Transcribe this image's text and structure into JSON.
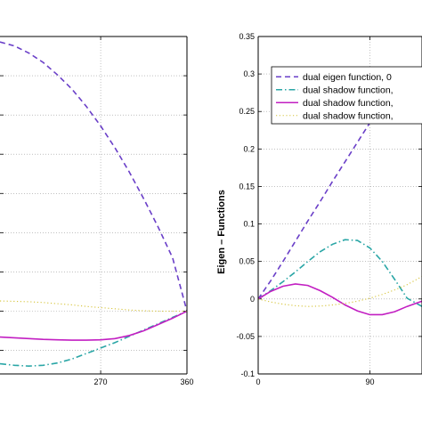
{
  "chart_data": [
    {
      "type": "line",
      "title": "",
      "xlabel": "",
      "ylabel": "",
      "xlim": [
        165,
        360
      ],
      "ylim": [
        -0.08,
        0.35
      ],
      "xticks": [
        270,
        360
      ],
      "xtick_labels": [
        "270",
        "360"
      ],
      "grid": true,
      "legend": "none",
      "series": [
        {
          "color": "#6a3fc8",
          "style": "dashed",
          "x": [
            165,
            180,
            195,
            210,
            225,
            240,
            255,
            270,
            285,
            300,
            315,
            330,
            345,
            360
          ],
          "y": [
            0.343,
            0.338,
            0.329,
            0.317,
            0.301,
            0.283,
            0.261,
            0.236,
            0.208,
            0.177,
            0.143,
            0.107,
            0.068,
            0.0
          ]
        },
        {
          "color": "#2aa6a6",
          "style": "dashdot",
          "x": [
            165,
            180,
            195,
            210,
            225,
            240,
            255,
            270,
            285,
            300,
            315,
            330,
            345,
            360
          ],
          "y": [
            -0.067,
            -0.069,
            -0.07,
            -0.069,
            -0.066,
            -0.061,
            -0.054,
            -0.047,
            -0.04,
            -0.032,
            -0.024,
            -0.016,
            -0.008,
            0.0
          ]
        },
        {
          "color": "#c21fc2",
          "style": "solid",
          "x": [
            165,
            180,
            195,
            210,
            225,
            240,
            255,
            270,
            285,
            300,
            315,
            330,
            345,
            360
          ],
          "y": [
            -0.033,
            -0.034,
            -0.035,
            -0.036,
            -0.0365,
            -0.037,
            -0.037,
            -0.0365,
            -0.035,
            -0.031,
            -0.025,
            -0.017,
            -0.009,
            0.0
          ]
        },
        {
          "color": "#d6c43a",
          "style": "dotted",
          "x": [
            165,
            180,
            195,
            210,
            225,
            240,
            255,
            270,
            285,
            300,
            315,
            330,
            345,
            360
          ],
          "y": [
            0.013,
            0.0125,
            0.012,
            0.011,
            0.0095,
            0.008,
            0.006,
            0.0045,
            0.003,
            0.0015,
            0.0005,
            0.0,
            0.0,
            0.0
          ]
        }
      ]
    },
    {
      "type": "line",
      "title": "",
      "xlabel": "",
      "ylabel": "Eigen – Functions",
      "xlim": [
        0,
        132
      ],
      "ylim": [
        -0.1,
        0.35
      ],
      "xticks": [
        0,
        90
      ],
      "xtick_labels": [
        "0",
        "90"
      ],
      "yticks": [
        -0.1,
        -0.05,
        0,
        0.05,
        0.1,
        0.15,
        0.2,
        0.25,
        0.3,
        0.35
      ],
      "ytick_labels": [
        "-0.1",
        "-0.05",
        "0",
        "0.05",
        "0.1",
        "0.15",
        "0.2",
        "0.25",
        "0.3",
        "0.35"
      ],
      "grid": true,
      "legend": "top-right",
      "series": [
        {
          "name": "dual eigen  function, 0",
          "color": "#6a3fc8",
          "style": "dashed",
          "x": [
            0,
            10,
            20,
            30,
            40,
            50,
            60,
            70,
            80,
            90,
            100
          ],
          "y": [
            0.0,
            0.024,
            0.05,
            0.077,
            0.104,
            0.13,
            0.157,
            0.183,
            0.209,
            0.235,
            0.26
          ]
        },
        {
          "name": "dual shadow  function,",
          "color": "#2aa6a6",
          "style": "dashdot",
          "x": [
            0,
            10,
            20,
            30,
            40,
            50,
            60,
            70,
            80,
            90,
            100,
            110,
            120,
            132
          ],
          "y": [
            0.0,
            0.011,
            0.023,
            0.036,
            0.05,
            0.063,
            0.073,
            0.079,
            0.078,
            0.068,
            0.05,
            0.026,
            0.001,
            -0.01
          ]
        },
        {
          "name": "dual shadow  function,",
          "color": "#c21fc2",
          "style": "solid",
          "x": [
            0,
            10,
            20,
            30,
            40,
            50,
            60,
            70,
            80,
            90,
            100,
            110,
            120,
            132
          ],
          "y": [
            0.0,
            0.01,
            0.017,
            0.02,
            0.018,
            0.011,
            0.002,
            -0.008,
            -0.016,
            -0.021,
            -0.021,
            -0.017,
            -0.01,
            -0.003
          ]
        },
        {
          "name": "dual shadow  function,",
          "color": "#d6c43a",
          "style": "dotted",
          "x": [
            0,
            10,
            20,
            30,
            40,
            50,
            60,
            70,
            80,
            90,
            100,
            110,
            120,
            132
          ],
          "y": [
            0.0,
            -0.004,
            -0.007,
            -0.009,
            -0.01,
            -0.0095,
            -0.008,
            -0.006,
            -0.003,
            0.001,
            0.006,
            0.012,
            0.019,
            0.03
          ]
        }
      ]
    }
  ]
}
